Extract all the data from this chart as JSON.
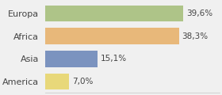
{
  "categories": [
    "Europa",
    "Africa",
    "Asia",
    "America"
  ],
  "values": [
    39.6,
    38.3,
    15.1,
    7.0
  ],
  "labels": [
    "39,6%",
    "38,3%",
    "15,1%",
    "7,0%"
  ],
  "bar_colors": [
    "#afc eighteen8a",
    "#e8b97a",
    "#7b93c0",
    "#e8d87a"
  ],
  "bar_colors_fixed": [
    "#aec488",
    "#e8b87a",
    "#7b93bf",
    "#e8d87a"
  ],
  "background_color": "#f0f0f0",
  "xlim": [
    0,
    50
  ],
  "bar_height": 0.72,
  "label_fontsize": 7.5,
  "ytick_fontsize": 8.0
}
